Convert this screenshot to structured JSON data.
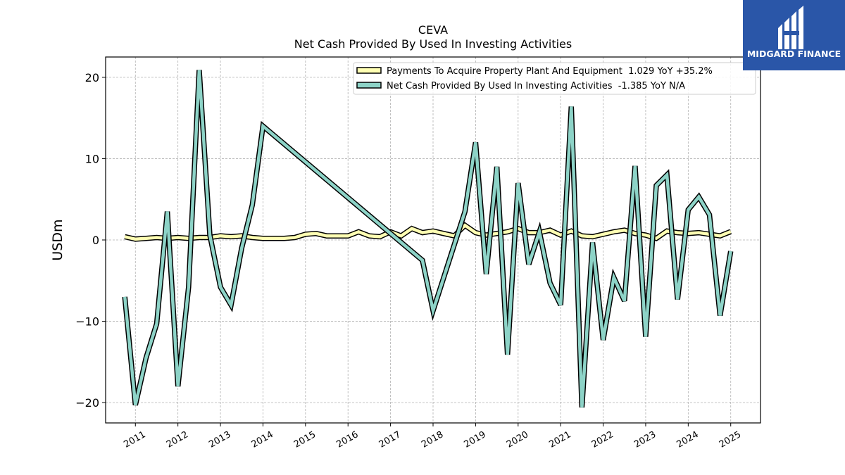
{
  "chart_data": {
    "type": "line",
    "title": "CEVA",
    "subtitle": "Net Cash Provided By Used In Investing Activities",
    "ylabel": "USDm",
    "xlabel": "",
    "ylim": [
      -22.5,
      22.5
    ],
    "xlim": [
      2010.3,
      2025.7
    ],
    "yticks": [
      -20,
      -10,
      0,
      10,
      20
    ],
    "ytick_labels": [
      "−20",
      "−10",
      "0",
      "10",
      "20"
    ],
    "xticks": [
      2011,
      2012,
      2013,
      2014,
      2015,
      2016,
      2017,
      2018,
      2019,
      2020,
      2021,
      2022,
      2023,
      2024,
      2025
    ],
    "xtick_labels": [
      "2011",
      "2012",
      "2013",
      "2014",
      "2015",
      "2016",
      "2017",
      "2018",
      "2019",
      "2020",
      "2021",
      "2022",
      "2023",
      "2024",
      "2025"
    ],
    "grid": true,
    "legend_position": "top-right",
    "series": [
      {
        "name": "Payments To Acquire Property Plant And Equipment  1.029 YoY +35.2%",
        "color": "#ffffb3",
        "x": [
          2010.75,
          2011.0,
          2011.25,
          2011.5,
          2011.75,
          2012.0,
          2012.25,
          2012.5,
          2012.75,
          2013.0,
          2013.25,
          2013.5,
          2013.75,
          2014.0,
          2014.25,
          2014.5,
          2014.75,
          2015.0,
          2015.25,
          2015.5,
          2015.75,
          2016.0,
          2016.25,
          2016.5,
          2016.75,
          2017.0,
          2017.25,
          2017.5,
          2017.75,
          2018.0,
          2018.25,
          2018.5,
          2018.75,
          2019.0,
          2019.25,
          2019.5,
          2019.75,
          2020.0,
          2020.25,
          2020.5,
          2020.75,
          2021.0,
          2021.25,
          2021.5,
          2021.75,
          2022.0,
          2022.25,
          2022.5,
          2022.75,
          2023.0,
          2023.25,
          2023.5,
          2023.75,
          2024.0,
          2024.25,
          2024.5,
          2024.75,
          2025.0
        ],
        "values": [
          0.4,
          0.1,
          0.2,
          0.3,
          0.2,
          0.3,
          0.2,
          0.3,
          0.3,
          0.5,
          0.4,
          0.5,
          0.3,
          0.2,
          0.2,
          0.2,
          0.3,
          0.7,
          0.8,
          0.5,
          0.5,
          0.5,
          1.0,
          0.5,
          0.4,
          1.0,
          0.5,
          1.4,
          0.9,
          1.1,
          0.8,
          0.5,
          1.8,
          0.9,
          0.6,
          0.8,
          1.0,
          1.4,
          0.9,
          0.9,
          1.2,
          0.6,
          1.1,
          0.5,
          0.4,
          0.7,
          1.0,
          1.2,
          0.8,
          0.6,
          0.2,
          1.1,
          0.9,
          0.8,
          0.9,
          0.7,
          0.5,
          1.03
        ]
      },
      {
        "name": "Net Cash Provided By Used In Investing Activities  -1.385 YoY N/A",
        "color": "#8dd3c7",
        "x": [
          2010.75,
          2011.0,
          2011.25,
          2011.5,
          2011.75,
          2012.0,
          2012.25,
          2012.5,
          2012.75,
          2013.0,
          2013.25,
          2013.5,
          2013.75,
          2014.0,
          2017.75,
          2018.0,
          2018.75,
          2019.0,
          2019.25,
          2019.5,
          2019.75,
          2020.0,
          2020.25,
          2020.5,
          2020.75,
          2021.0,
          2021.25,
          2021.5,
          2021.75,
          2022.0,
          2022.25,
          2022.5,
          2022.75,
          2023.0,
          2023.25,
          2023.5,
          2023.75,
          2024.0,
          2024.25,
          2024.5,
          2024.75,
          2025.0
        ],
        "values": [
          -7.0,
          -20.3,
          -14.5,
          -10.3,
          3.5,
          -18.0,
          -5.8,
          20.9,
          0.6,
          -5.8,
          -8.0,
          -1.0,
          4.3,
          14.0,
          -2.5,
          -8.7,
          3.5,
          12.0,
          -4.2,
          9.0,
          -14.1,
          7.0,
          -3.0,
          1.0,
          -5.3,
          -8.0,
          16.4,
          -20.6,
          -0.3,
          -12.3,
          -4.6,
          -7.5,
          9.1,
          -11.9,
          6.7,
          8.0,
          -7.3,
          3.7,
          5.3,
          3.1,
          -9.3,
          -1.385
        ]
      }
    ]
  },
  "logo": {
    "text": "MIDGARD FINANCE",
    "background": "#2a56a8",
    "icon": "midgard-logo-icon"
  }
}
